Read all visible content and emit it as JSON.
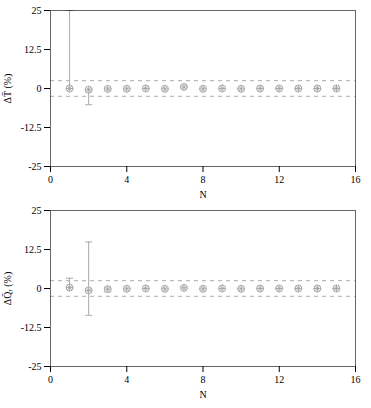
{
  "chart_data": [
    {
      "type": "scatter",
      "ylabel": "ΔT̄ (%)",
      "xlabel": "N",
      "xlim": [
        0,
        16
      ],
      "ylim": [
        -25,
        25
      ],
      "xticks": [
        0,
        4,
        8,
        12,
        16
      ],
      "yticks": [
        -25,
        -12.5,
        0,
        12.5,
        25
      ],
      "x": [
        1,
        2,
        3,
        4,
        5,
        6,
        7,
        8,
        9,
        10,
        11,
        12,
        13,
        14,
        15
      ],
      "values": [
        0.0,
        -0.4,
        -0.15,
        -0.1,
        0.0,
        -0.1,
        0.5,
        -0.1,
        0.0,
        -0.1,
        0.0,
        0.0,
        0.0,
        0.0,
        0.0
      ],
      "error_up": [
        25.0,
        0.3,
        0.3,
        0.3,
        0.2,
        0.2,
        0.5,
        0.2,
        0.2,
        0.2,
        0.1,
        0.1,
        0.1,
        0.1,
        0.1
      ],
      "error_down": [
        0.0,
        4.8,
        0.3,
        0.3,
        0.2,
        0.2,
        0.2,
        0.2,
        0.2,
        0.2,
        0.1,
        0.1,
        0.1,
        0.1,
        0.1
      ],
      "reference_lines": [
        -2.5,
        2.5
      ],
      "color": "#aaaaaa",
      "marker": "circle",
      "grid": false
    },
    {
      "type": "scatter",
      "ylabel": "ΔQ̄ᵣ (%)",
      "xlabel": "N",
      "xlim": [
        0,
        16
      ],
      "ylim": [
        -25,
        25
      ],
      "xticks": [
        0,
        4,
        8,
        12,
        16
      ],
      "yticks": [
        -25,
        -12.5,
        0,
        12.5,
        25
      ],
      "x": [
        1,
        2,
        3,
        4,
        5,
        6,
        7,
        8,
        9,
        10,
        11,
        12,
        13,
        14,
        15
      ],
      "values": [
        0.3,
        -0.6,
        -0.2,
        -0.1,
        0.0,
        -0.1,
        0.2,
        -0.1,
        0.0,
        -0.1,
        0.0,
        0.0,
        0.0,
        0.0,
        0.0
      ],
      "error_up": [
        3.0,
        15.5,
        0.5,
        0.3,
        0.2,
        0.2,
        0.4,
        0.2,
        0.2,
        0.2,
        0.1,
        0.1,
        0.1,
        0.1,
        0.1
      ],
      "error_down": [
        0.3,
        8.0,
        0.9,
        0.3,
        0.2,
        0.2,
        0.2,
        0.2,
        0.2,
        0.2,
        0.1,
        0.1,
        0.1,
        0.1,
        0.1
      ],
      "reference_lines": [
        -2.5,
        2.5
      ],
      "color": "#aaaaaa",
      "marker": "circle",
      "grid": false
    }
  ]
}
